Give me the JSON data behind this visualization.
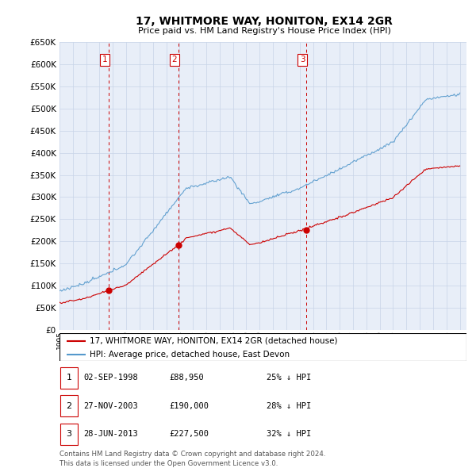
{
  "title": "17, WHITMORE WAY, HONITON, EX14 2GR",
  "subtitle": "Price paid vs. HM Land Registry's House Price Index (HPI)",
  "ylim": [
    0,
    650000
  ],
  "yticks": [
    0,
    50000,
    100000,
    150000,
    200000,
    250000,
    300000,
    350000,
    400000,
    450000,
    500000,
    550000,
    600000,
    650000
  ],
  "xlim_start": 1995.0,
  "xlim_end": 2025.5,
  "background_color": "#ffffff",
  "grid_color": "#c8d4e8",
  "plot_bg_color": "#e8eef8",
  "hpi_line_color": "#5599cc",
  "sale_line_color": "#cc0000",
  "vline_color": "#cc0000",
  "purchases": [
    {
      "label": "1",
      "date_str": "02-SEP-1998",
      "year": 1998.67,
      "price": 88950
    },
    {
      "label": "2",
      "date_str": "27-NOV-2003",
      "year": 2003.9,
      "price": 190000
    },
    {
      "label": "3",
      "date_str": "28-JUN-2013",
      "year": 2013.49,
      "price": 227500
    }
  ],
  "legend_line1": "17, WHITMORE WAY, HONITON, EX14 2GR (detached house)",
  "legend_line2": "HPI: Average price, detached house, East Devon",
  "footnote": "Contains HM Land Registry data © Crown copyright and database right 2024.\nThis data is licensed under the Open Government Licence v3.0.",
  "table_rows": [
    [
      "1",
      "02-SEP-1998",
      "£88,950",
      "25% ↓ HPI"
    ],
    [
      "2",
      "27-NOV-2003",
      "£190,000",
      "28% ↓ HPI"
    ],
    [
      "3",
      "28-JUN-2013",
      "£227,500",
      "32% ↓ HPI"
    ]
  ]
}
